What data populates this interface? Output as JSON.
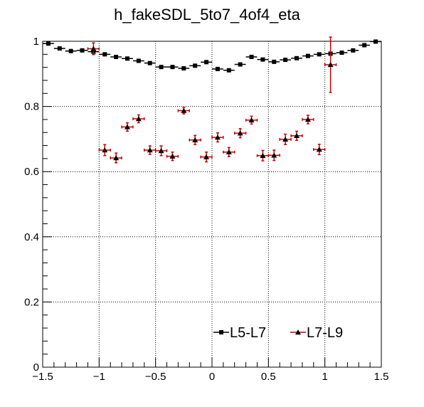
{
  "chart_data": {
    "type": "scatter",
    "title": "h_fakeSDL_5to7_4of4_eta",
    "xlabel": "",
    "ylabel": "",
    "xlim": [
      -1.5,
      1.5
    ],
    "ylim": [
      0,
      1.0
    ],
    "x_ticks": [
      -1.5,
      -1,
      -0.5,
      0,
      0.5,
      1,
      1.5
    ],
    "x_tick_labels": [
      "−1.5",
      "−1",
      "−0.5",
      "0",
      "0.5",
      "1",
      "1.5"
    ],
    "y_ticks": [
      0,
      0.2,
      0.4,
      0.6,
      0.8,
      1
    ],
    "y_tick_labels": [
      "0",
      "0.2",
      "0.4",
      "0.6",
      "0.8",
      "1"
    ],
    "grid": true,
    "legend_position": "bottom-right",
    "series": [
      {
        "name": "L5-L7",
        "color": "#000000",
        "marker": "square",
        "bin_half_width": 0.05,
        "x": [
          -1.45,
          -1.35,
          -1.25,
          -1.15,
          -1.05,
          -0.95,
          -0.85,
          -0.75,
          -0.65,
          -0.55,
          -0.45,
          -0.35,
          -0.25,
          -0.15,
          -0.05,
          0.05,
          0.15,
          0.25,
          0.35,
          0.45,
          0.55,
          0.65,
          0.75,
          0.85,
          0.95,
          1.05,
          1.15,
          1.25,
          1.35,
          1.45
        ],
        "y": [
          0.993,
          0.978,
          0.97,
          0.972,
          0.968,
          0.96,
          0.952,
          0.947,
          0.94,
          0.933,
          0.921,
          0.921,
          0.917,
          0.925,
          0.936,
          0.915,
          0.911,
          0.929,
          0.952,
          0.944,
          0.937,
          0.943,
          0.948,
          0.955,
          0.96,
          0.962,
          0.965,
          0.972,
          0.988,
          0.999
        ],
        "yerr": [
          0.003,
          0.003,
          0.003,
          0.003,
          0.003,
          0.003,
          0.003,
          0.003,
          0.003,
          0.003,
          0.003,
          0.003,
          0.003,
          0.003,
          0.003,
          0.003,
          0.003,
          0.003,
          0.003,
          0.003,
          0.003,
          0.003,
          0.003,
          0.003,
          0.003,
          0.003,
          0.003,
          0.003,
          0.003,
          0.003
        ]
      },
      {
        "name": "L7-L9",
        "color": "#cc0000",
        "marker": "triangle",
        "bin_half_width": 0.05,
        "x": [
          -1.05,
          -0.95,
          -0.85,
          -0.75,
          -0.65,
          -0.55,
          -0.45,
          -0.35,
          -0.25,
          -0.15,
          -0.05,
          0.05,
          0.15,
          0.25,
          0.35,
          0.45,
          0.55,
          0.65,
          0.75,
          0.85,
          0.95,
          1.05
        ],
        "y": [
          0.977,
          0.666,
          0.642,
          0.737,
          0.762,
          0.666,
          0.664,
          0.647,
          0.787,
          0.697,
          0.645,
          0.705,
          0.66,
          0.718,
          0.758,
          0.649,
          0.65,
          0.699,
          0.71,
          0.76,
          0.668,
          0.928
        ],
        "yerr": [
          0.018,
          0.017,
          0.015,
          0.013,
          0.012,
          0.013,
          0.015,
          0.013,
          0.01,
          0.014,
          0.015,
          0.014,
          0.014,
          0.014,
          0.012,
          0.016,
          0.016,
          0.016,
          0.014,
          0.013,
          0.016,
          0.085
        ]
      }
    ]
  }
}
